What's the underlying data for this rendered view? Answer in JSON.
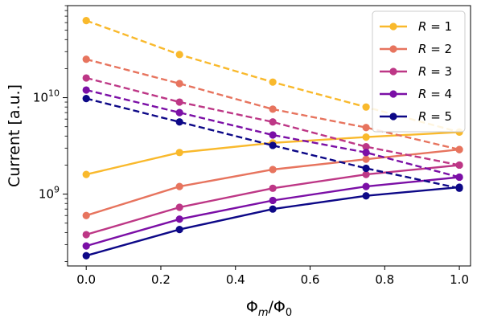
{
  "chart_data": {
    "type": "line",
    "xlabel": "Φm/Φ0",
    "ylabel": "Current [a.u.]",
    "yscale": "log",
    "xlim": [
      -0.05,
      1.03
    ],
    "ylim": [
      180000000,
      90000000000
    ],
    "x_ticks": [
      0.0,
      0.2,
      0.4,
      0.6,
      0.8,
      1.0
    ],
    "x_tick_labels": [
      "0.0",
      "0.2",
      "0.4",
      "0.6",
      "0.8",
      "1.0"
    ],
    "y_major_ticks": [
      1000000000,
      10000000000
    ],
    "y_tick_labels": [
      {
        "base": "10",
        "exp": "9"
      },
      {
        "base": "10",
        "exp": "10"
      }
    ],
    "x": [
      0.0,
      0.25,
      0.5,
      0.75,
      1.0
    ],
    "legend_position": "top-right",
    "series": [
      {
        "name": "R = 1",
        "label_var": "R",
        "label_eq": " = 1",
        "color": "#f9b92c",
        "solid": [
          1600000000,
          2700000000,
          3400000000,
          3900000000,
          4400000000
        ],
        "dashed": [
          63000000000,
          28000000000,
          14500000000,
          8000000000,
          4400000000
        ]
      },
      {
        "name": "R = 2",
        "label_var": "R",
        "label_eq": " = 2",
        "color": "#e7745e",
        "solid": [
          600000000,
          1200000000,
          1800000000,
          2300000000,
          2900000000
        ],
        "dashed": [
          25000000000,
          14000000000,
          7600000000,
          4900000000,
          2900000000
        ]
      },
      {
        "name": "R = 3",
        "label_var": "R",
        "label_eq": " = 3",
        "color": "#bd3786",
        "solid": [
          380000000,
          730000000,
          1150000000,
          1600000000,
          2000000000
        ],
        "dashed": [
          16000000000,
          9000000000,
          5600000000,
          3100000000,
          2000000000
        ]
      },
      {
        "name": "R = 4",
        "label_var": "R",
        "label_eq": " = 4",
        "color": "#7b0fa6",
        "solid": [
          290000000,
          550000000,
          860000000,
          1200000000,
          1500000000
        ],
        "dashed": [
          12000000000,
          7000000000,
          4100000000,
          2700000000,
          1500000000
        ]
      },
      {
        "name": "R = 5",
        "label_var": "R",
        "label_eq": " = 5",
        "color": "#0d0887",
        "solid": [
          230000000,
          430000000,
          700000000,
          960000000,
          1180000000
        ],
        "dashed": [
          9800000000,
          5600000000,
          3200000000,
          1850000000,
          1150000000
        ]
      }
    ]
  }
}
